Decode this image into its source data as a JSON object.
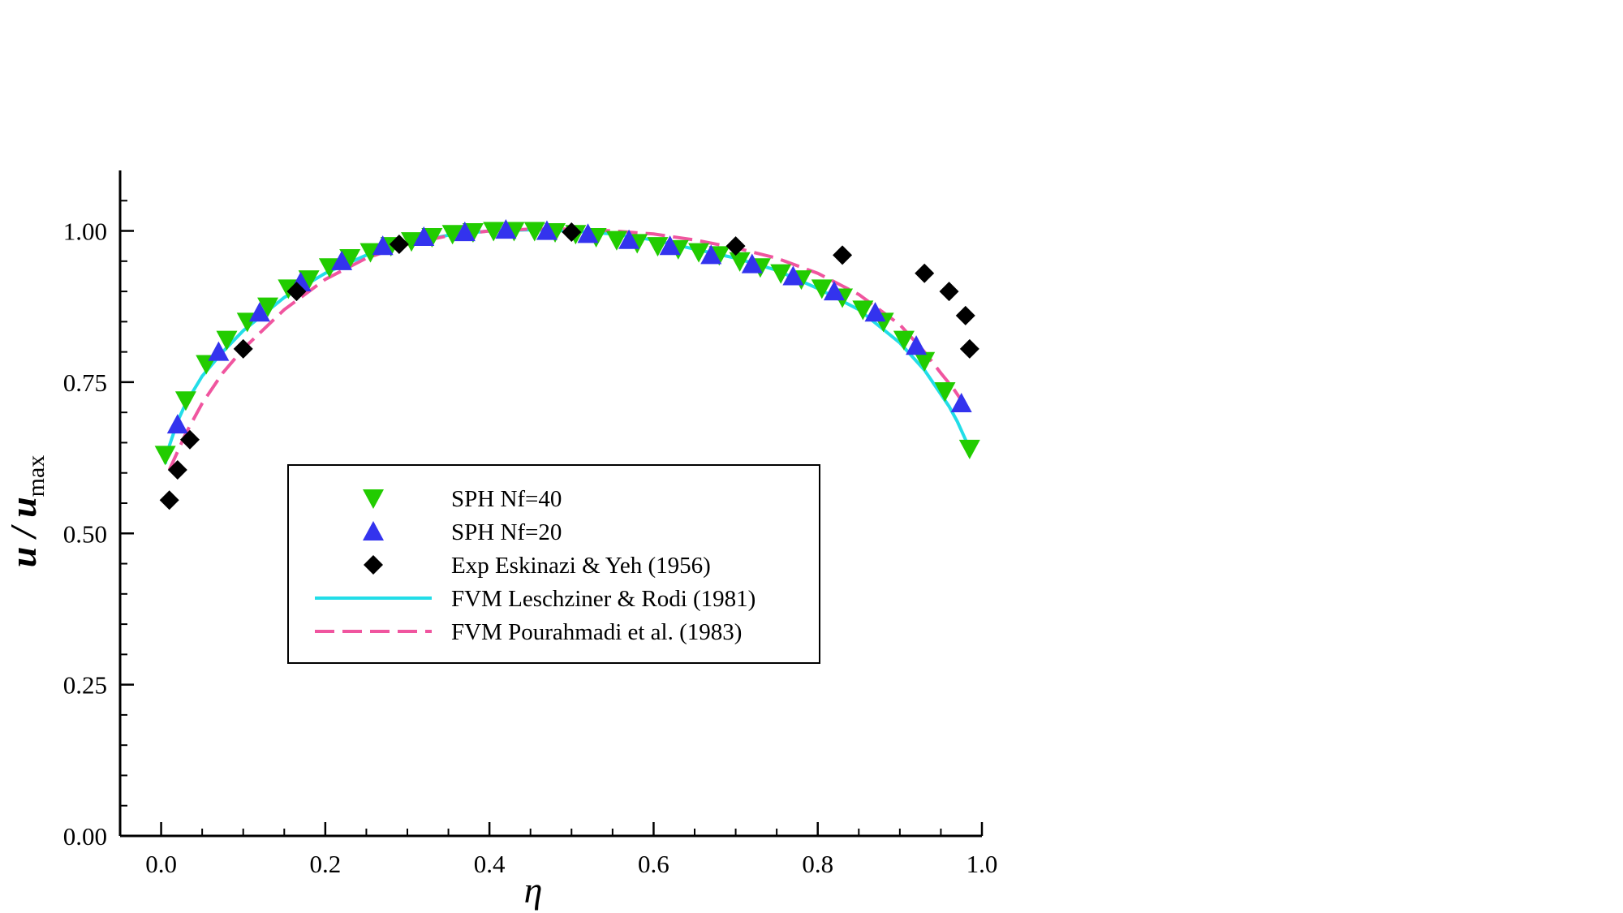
{
  "chart_data": {
    "type": "scatter",
    "title": "",
    "xlabel": "η",
    "ylabel": {
      "main": "u / u",
      "sub": "max"
    },
    "xlim": [
      -0.05,
      1.0
    ],
    "ylim": [
      0.0,
      1.1
    ],
    "x_ticks": [
      0.0,
      0.2,
      0.4,
      0.6,
      0.8,
      1.0
    ],
    "x_tick_labels": [
      "0.0",
      "0.2",
      "0.4",
      "0.6",
      "0.8",
      "1.0"
    ],
    "y_ticks": [
      0.0,
      0.25,
      0.5,
      0.75,
      1.0
    ],
    "y_tick_labels": [
      "0.00",
      "0.25",
      "0.50",
      "0.75",
      "1.00"
    ],
    "grid": false,
    "legend_position": "center-left",
    "series": [
      {
        "name": "SPH  Nf=40",
        "kind": "scatter",
        "marker": "triangle-down",
        "color": "#22cc00",
        "x": [
          0.005,
          0.03,
          0.055,
          0.08,
          0.105,
          0.13,
          0.155,
          0.18,
          0.205,
          0.23,
          0.255,
          0.28,
          0.305,
          0.33,
          0.355,
          0.38,
          0.405,
          0.43,
          0.455,
          0.48,
          0.505,
          0.53,
          0.555,
          0.58,
          0.605,
          0.63,
          0.655,
          0.68,
          0.705,
          0.73,
          0.755,
          0.78,
          0.805,
          0.83,
          0.855,
          0.88,
          0.905,
          0.93,
          0.955,
          0.985
        ],
        "y": [
          0.63,
          0.72,
          0.78,
          0.82,
          0.85,
          0.875,
          0.905,
          0.92,
          0.94,
          0.955,
          0.965,
          0.975,
          0.983,
          0.99,
          0.995,
          0.998,
          1.0,
          1.0,
          1.0,
          0.998,
          0.995,
          0.99,
          0.985,
          0.98,
          0.975,
          0.97,
          0.965,
          0.96,
          0.95,
          0.94,
          0.93,
          0.92,
          0.905,
          0.89,
          0.87,
          0.85,
          0.82,
          0.785,
          0.735,
          0.64
        ]
      },
      {
        "name": "SPH  Nf=20",
        "kind": "scatter",
        "marker": "triangle-up",
        "color": "#3333ee",
        "x": [
          0.02,
          0.07,
          0.12,
          0.17,
          0.22,
          0.27,
          0.32,
          0.37,
          0.42,
          0.47,
          0.52,
          0.57,
          0.62,
          0.67,
          0.72,
          0.77,
          0.82,
          0.87,
          0.92,
          0.975
        ],
        "y": [
          0.68,
          0.8,
          0.865,
          0.915,
          0.95,
          0.975,
          0.99,
          0.998,
          1.002,
          1.0,
          0.995,
          0.985,
          0.975,
          0.96,
          0.945,
          0.925,
          0.9,
          0.865,
          0.81,
          0.715
        ]
      },
      {
        "name": "Exp Eskinazi & Yeh (1956)",
        "kind": "scatter",
        "marker": "diamond",
        "color": "#000000",
        "x": [
          0.01,
          0.02,
          0.035,
          0.1,
          0.165,
          0.29,
          0.5,
          0.7,
          0.83,
          0.93,
          0.96,
          0.98,
          0.985
        ],
        "y": [
          0.555,
          0.605,
          0.655,
          0.805,
          0.9,
          0.978,
          0.998,
          0.975,
          0.96,
          0.93,
          0.9,
          0.86,
          0.805
        ]
      },
      {
        "name": "FVM Leschziner & Rodi (1981)",
        "kind": "line",
        "style": "solid",
        "color": "#22dde8",
        "x": [
          0.005,
          0.01,
          0.02,
          0.03,
          0.05,
          0.075,
          0.1,
          0.15,
          0.2,
          0.25,
          0.3,
          0.35,
          0.4,
          0.45,
          0.5,
          0.55,
          0.6,
          0.65,
          0.7,
          0.75,
          0.8,
          0.85,
          0.9,
          0.93,
          0.95,
          0.96,
          0.97,
          0.98,
          0.985
        ],
        "y": [
          0.615,
          0.645,
          0.685,
          0.715,
          0.76,
          0.8,
          0.835,
          0.89,
          0.93,
          0.96,
          0.98,
          0.993,
          1.0,
          1.002,
          1.0,
          0.995,
          0.985,
          0.97,
          0.955,
          0.935,
          0.905,
          0.87,
          0.815,
          0.77,
          0.73,
          0.71,
          0.685,
          0.655,
          0.64
        ]
      },
      {
        "name": "FVM Pourahmadi et al. (1983)",
        "kind": "line",
        "style": "dashed",
        "color": "#f0559f",
        "x": [
          0.01,
          0.02,
          0.03,
          0.05,
          0.075,
          0.1,
          0.15,
          0.2,
          0.25,
          0.3,
          0.35,
          0.4,
          0.45,
          0.5,
          0.55,
          0.6,
          0.65,
          0.7,
          0.75,
          0.8,
          0.85,
          0.9,
          0.93,
          0.95,
          0.965,
          0.975,
          0.98
        ],
        "y": [
          0.605,
          0.635,
          0.665,
          0.715,
          0.765,
          0.805,
          0.87,
          0.92,
          0.955,
          0.978,
          0.992,
          1.0,
          1.003,
          1.003,
          1.0,
          0.995,
          0.985,
          0.972,
          0.955,
          0.93,
          0.895,
          0.845,
          0.8,
          0.765,
          0.74,
          0.72,
          0.71
        ]
      }
    ]
  }
}
